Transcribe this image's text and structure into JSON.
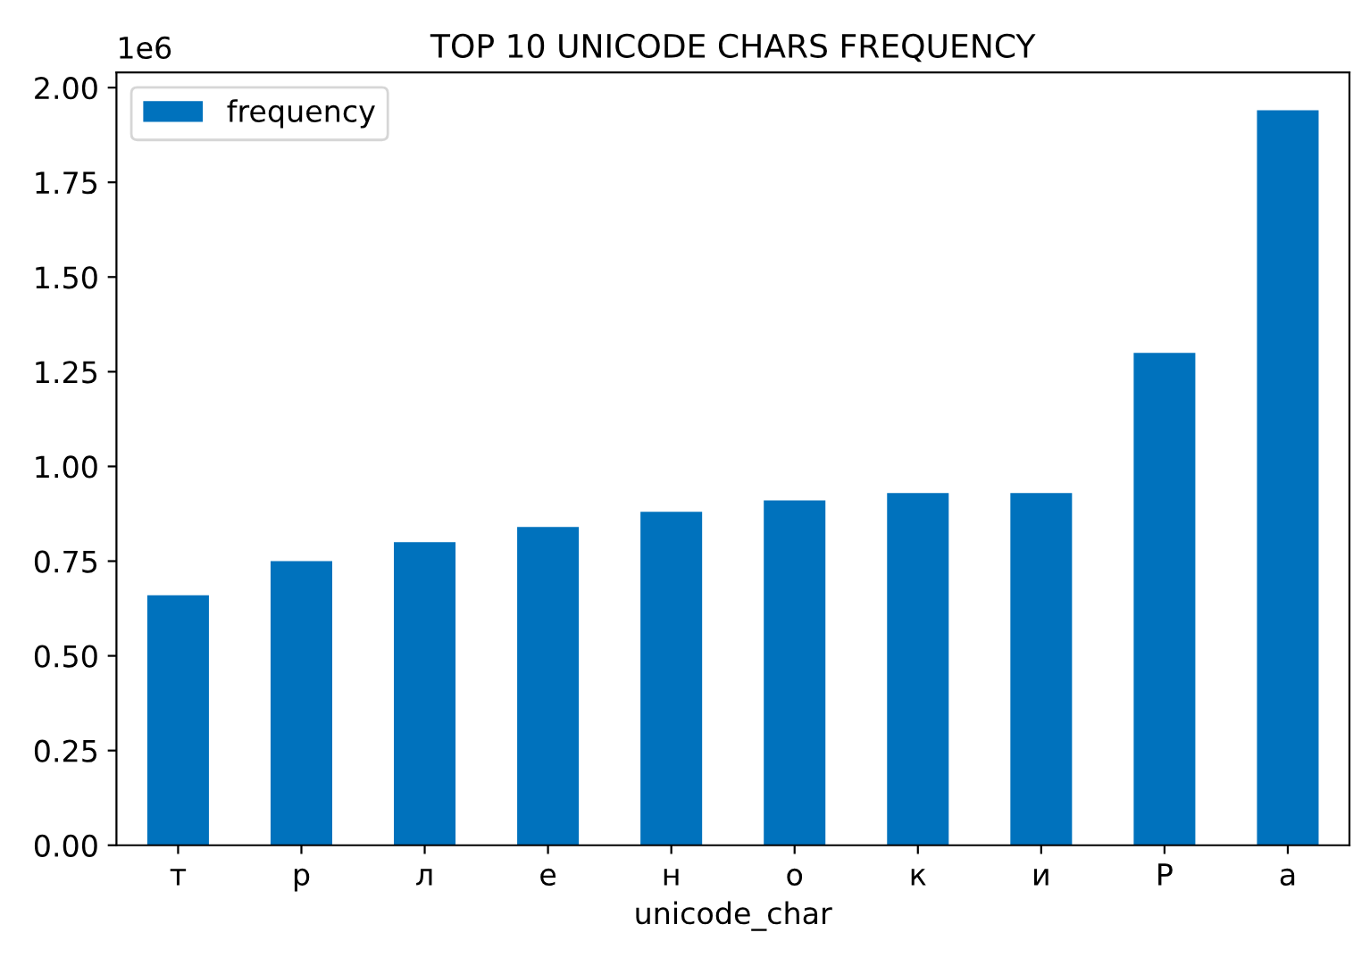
{
  "chart_data": {
    "type": "bar",
    "title": "TOP 10 UNICODE CHARS FREQUENCY",
    "xlabel": "unicode_char",
    "categories": [
      "т",
      "р",
      "л",
      "е",
      "н",
      "о",
      "к",
      "и",
      "Р",
      "а"
    ],
    "series": [
      {
        "name": "frequency",
        "color": "#0072bd",
        "values": [
          0.66,
          0.75,
          0.8,
          0.84,
          0.88,
          0.91,
          0.93,
          0.93,
          1.3,
          1.94
        ]
      }
    ],
    "ylim": [
      0,
      2.04
    ],
    "yticks": [
      {
        "value": 0,
        "label": "0.00"
      },
      {
        "value": 0.25,
        "label": "0.25"
      },
      {
        "value": 0.5,
        "label": "0.50"
      },
      {
        "value": 0.75,
        "label": "0.75"
      },
      {
        "value": 1.0,
        "label": "1.00"
      },
      {
        "value": 1.25,
        "label": "1.25"
      },
      {
        "value": 1.5,
        "label": "1.50"
      },
      {
        "value": 1.75,
        "label": "1.75"
      },
      {
        "value": 2.0,
        "label": "2.00"
      }
    ],
    "annotations": [
      "1e6"
    ],
    "legend": "top left",
    "grid": false
  }
}
